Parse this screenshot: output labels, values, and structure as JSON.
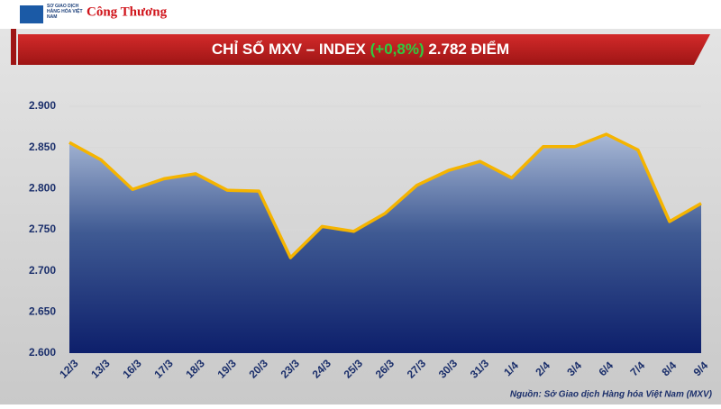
{
  "header": {
    "logo_left": "SỞ GIAO DỊCH HÀNG HÓA VIỆT NAM",
    "logo_right": "Công Thương"
  },
  "chart_data": {
    "type": "area-line",
    "title": [
      "CHỈ SỐ MXV – INDEX",
      "(+0,8%)",
      "2.782 ĐIỂM"
    ],
    "title_highlight_color": "#2ecc40",
    "categories": [
      "12/3",
      "13/3",
      "16/3",
      "17/3",
      "18/3",
      "19/3",
      "20/3",
      "23/3",
      "24/3",
      "25/3",
      "26/3",
      "27/3",
      "30/3",
      "31/3",
      "1/4",
      "2/4",
      "3/4",
      "6/4",
      "7/4",
      "8/4",
      "9/4"
    ],
    "values": [
      2856,
      2835,
      2799,
      2812,
      2818,
      2798,
      2797,
      2716,
      2754,
      2748,
      2770,
      2804,
      2822,
      2833,
      2813,
      2851,
      2851,
      2866,
      2847,
      2760,
      2782
    ],
    "color": "#f5b400",
    "ylim": [
      2600,
      2900
    ],
    "yticks": [
      {
        "value": 2600,
        "label": "2.600"
      },
      {
        "value": 2650,
        "label": "2.650"
      },
      {
        "value": 2700,
        "label": "2.700"
      },
      {
        "value": 2750,
        "label": "2.750"
      },
      {
        "value": 2800,
        "label": "2.800"
      },
      {
        "value": 2850,
        "label": "2.850"
      },
      {
        "value": 2900,
        "label": "2.900"
      }
    ],
    "grid": true,
    "source": "Nguồn: Sở Giao dịch Hàng hóa Việt Nam (MXV)"
  }
}
